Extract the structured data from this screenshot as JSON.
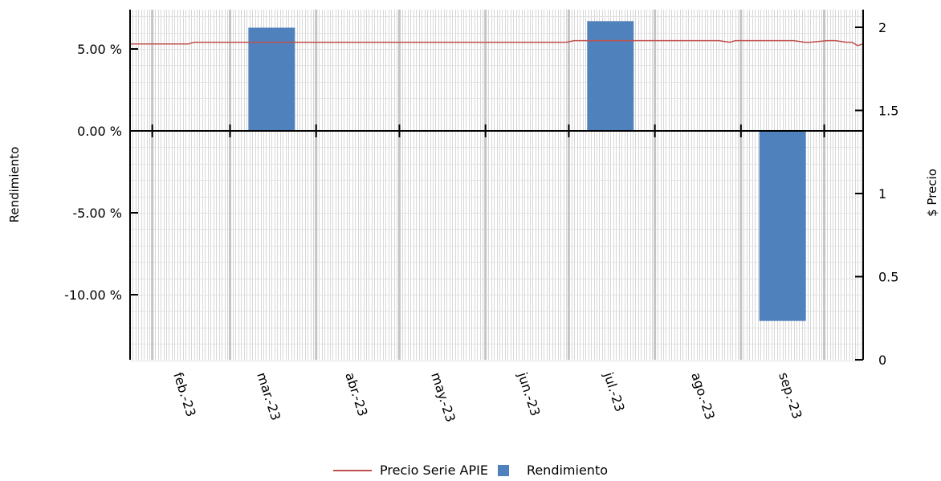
{
  "chart_data": {
    "type": "bar",
    "title": "",
    "ylabel": "Rendimiento",
    "y2label": "$ Precio",
    "ylim": [
      -14,
      7.5
    ],
    "y2lim": [
      0,
      2.1
    ],
    "yticks": [
      5,
      0,
      -5,
      -10
    ],
    "ytick_labels": [
      "5.00 %",
      "0.00 %",
      "-5.00 %",
      "-10.00 %"
    ],
    "y2ticks": [
      2,
      1.5,
      1,
      0.5,
      0
    ],
    "y2tick_labels": [
      "2",
      "1.5",
      "1",
      "0.5",
      "0"
    ],
    "months": [
      "feb.-23",
      "mar.-23",
      "abr.-23",
      "may.-23",
      "jun.-23",
      "jul.-23",
      "ago.-23",
      "sep.-23"
    ],
    "grid": true,
    "legend_position": "bottom",
    "colors": {
      "price": "#c0504d",
      "bars": "#4f81bd"
    },
    "series": [
      {
        "name": "Rendimiento",
        "kind": "bar",
        "categories": [
          "mar.-23",
          "jul.-23",
          "sep.-23"
        ],
        "values": [
          6.3,
          6.7,
          -11.6
        ]
      },
      {
        "name": "Precio Serie APIE",
        "kind": "line",
        "axis": "right",
        "x": [
          "2023-01-24",
          "2023-02-14",
          "2023-02-16",
          "2023-03-13",
          "2023-04-13",
          "2023-05-13",
          "2023-06-13",
          "2023-06-30",
          "2023-07-03",
          "2023-07-31",
          "2023-08-24",
          "2023-08-28",
          "2023-08-30",
          "2023-09-20",
          "2023-09-24",
          "2023-09-26",
          "2023-10-02",
          "2023-10-05",
          "2023-10-09",
          "2023-10-11",
          "2023-10-13",
          "2023-10-15"
        ],
        "values": [
          1.9,
          1.9,
          1.91,
          1.91,
          1.91,
          1.91,
          1.91,
          1.91,
          1.92,
          1.92,
          1.92,
          1.91,
          1.92,
          1.92,
          1.91,
          1.91,
          1.92,
          1.92,
          1.91,
          1.91,
          1.89,
          1.9
        ]
      }
    ]
  }
}
